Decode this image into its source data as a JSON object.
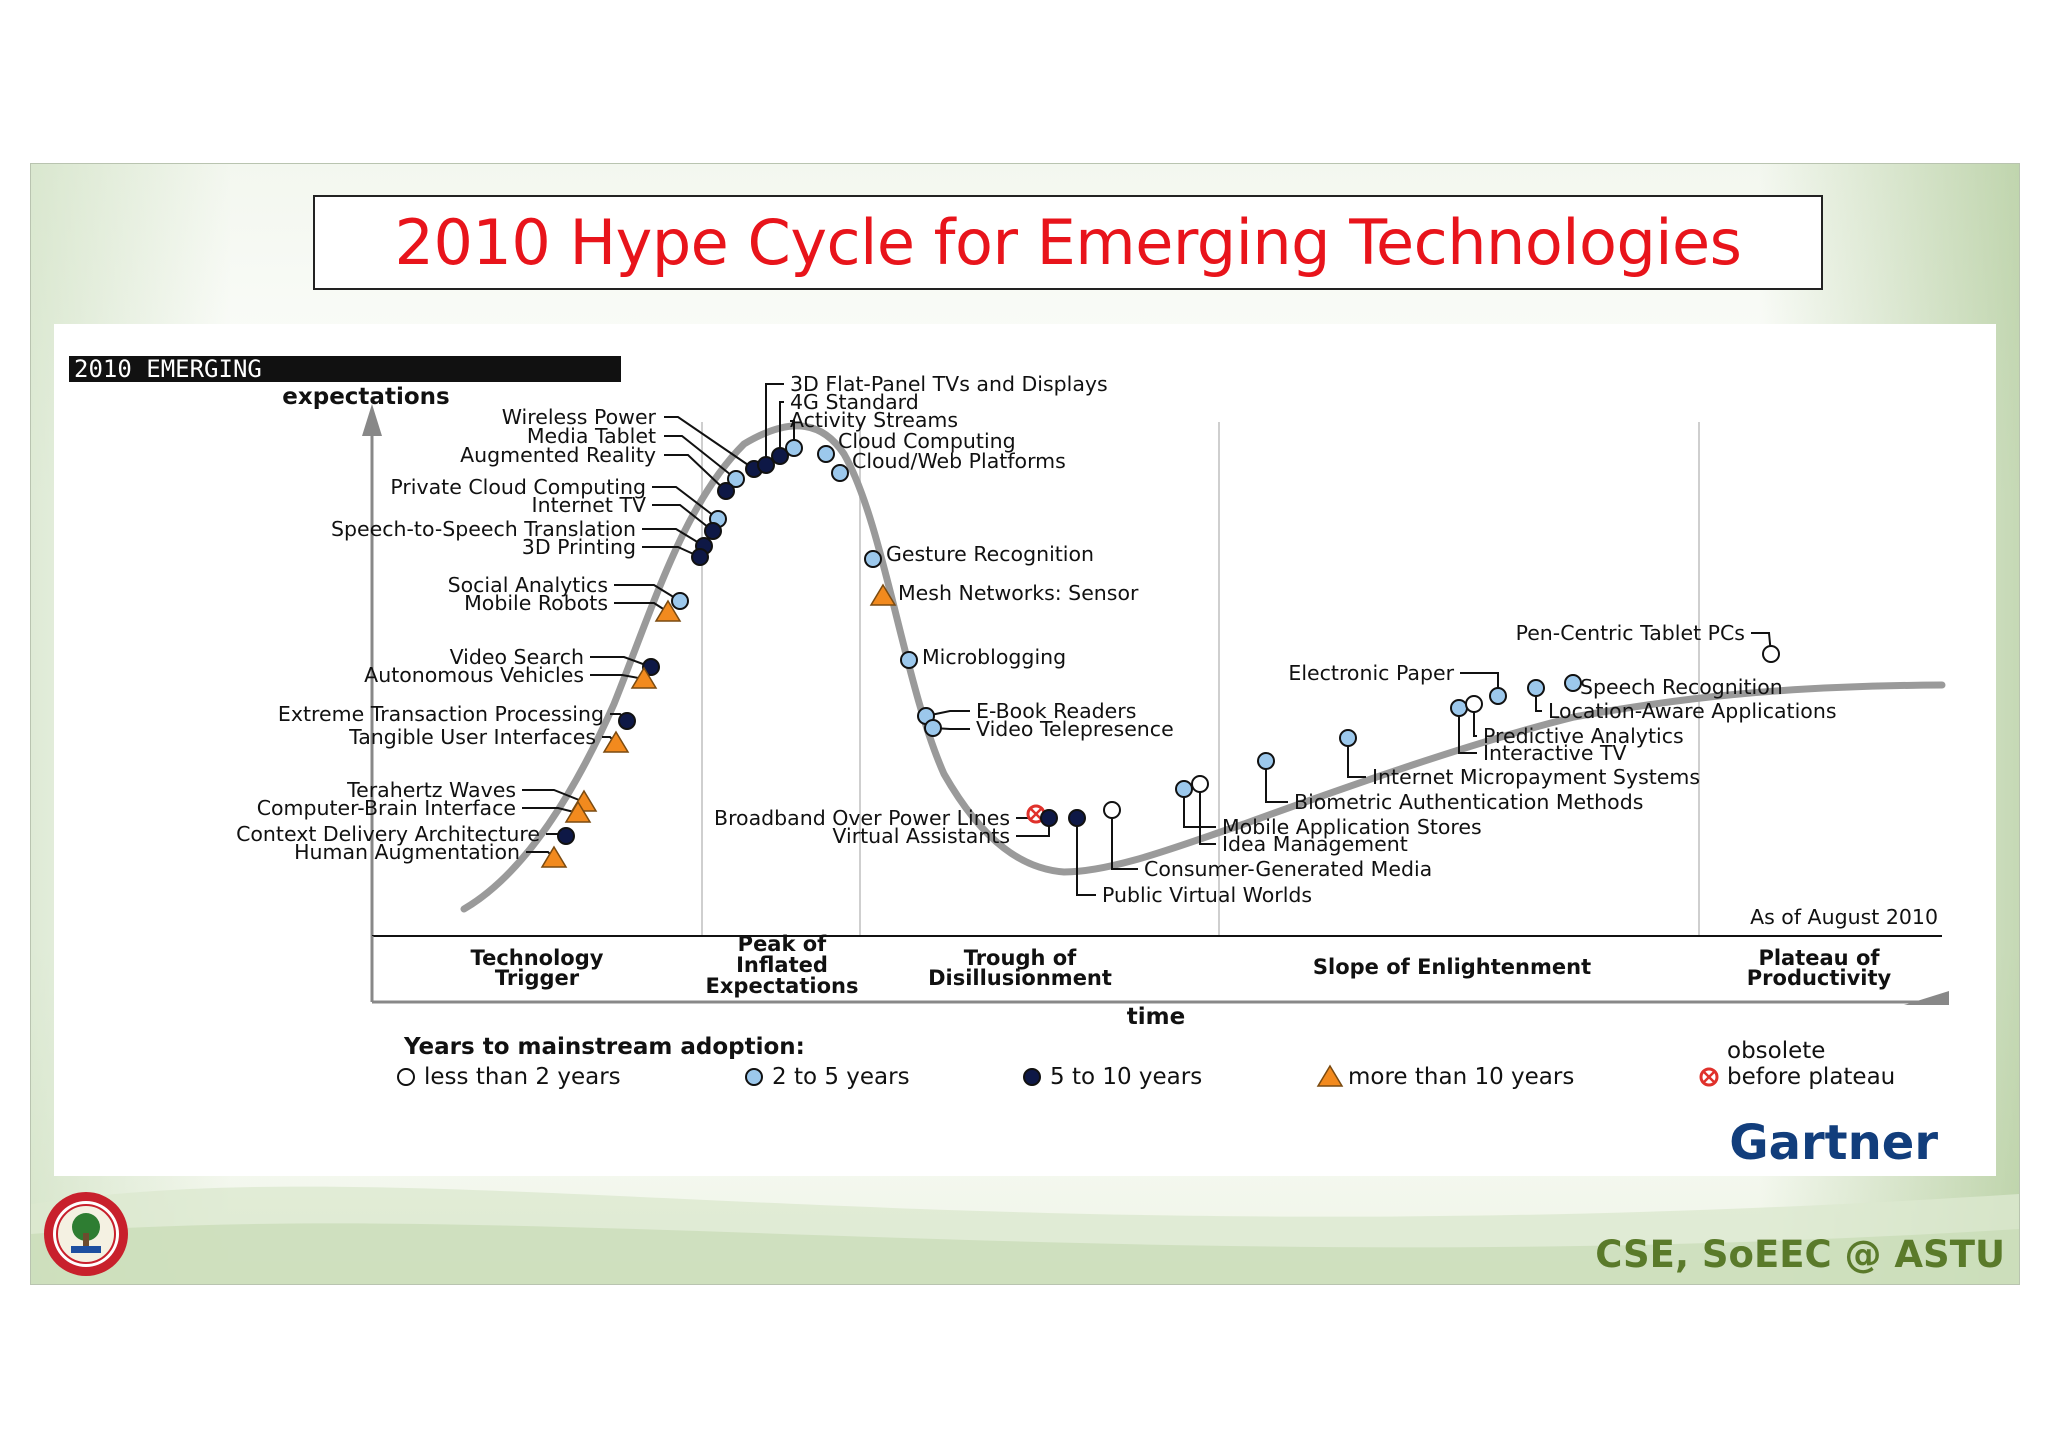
{
  "slide": {
    "title": "2010 Hype Cycle for Emerging Technologies",
    "footer": "CSE, SoEEC @ ASTU",
    "logo": "astu-university-seal"
  },
  "figure": {
    "corner_label": "2010 EMERGING",
    "y_axis_label": "expectations",
    "x_axis_label": "time",
    "as_of": "As of August 2010",
    "brand": "Gartner",
    "phases": [
      "Technology Trigger",
      "Peak of Inflated Expectations",
      "Trough of Disillusionment",
      "Slope of Enlightenment",
      "Plateau of Productivity"
    ],
    "legend_title": "Years to mainstream adoption:",
    "legend": [
      {
        "key": "lt2",
        "label": "less than 2 years",
        "marker": "circle-white"
      },
      {
        "key": "2to5",
        "label": "2 to 5 years",
        "marker": "circle-lightblue"
      },
      {
        "key": "5to10",
        "label": "5 to 10 years",
        "marker": "circle-navy"
      },
      {
        "key": "gt10",
        "label": "more than 10 years",
        "marker": "triangle-orange"
      },
      {
        "key": "obs",
        "label_line1": "obsolete",
        "label_line2": "before plateau",
        "marker": "circle-x-red"
      }
    ],
    "colors": {
      "lt2": "#ffffff",
      "2to5": "#9cc8ec",
      "5to10": "#0e1846",
      "gt10": "#f28a1e",
      "obs": "#e0312b",
      "curve": "#9a9a9a",
      "gartner": "#123e7c"
    },
    "technologies": [
      {
        "name": "Wireless Power",
        "years": "5to10"
      },
      {
        "name": "Media Tablet",
        "years": "2to5"
      },
      {
        "name": "Augmented Reality",
        "years": "5to10"
      },
      {
        "name": "Private Cloud Computing",
        "years": "2to5"
      },
      {
        "name": "Internet TV",
        "years": "5to10"
      },
      {
        "name": "Speech-to-Speech Translation",
        "years": "5to10"
      },
      {
        "name": "3D Printing",
        "years": "5to10"
      },
      {
        "name": "Social Analytics",
        "years": "2to5"
      },
      {
        "name": "Mobile Robots",
        "years": "gt10"
      },
      {
        "name": "Video Search",
        "years": "5to10"
      },
      {
        "name": "Autonomous Vehicles",
        "years": "gt10"
      },
      {
        "name": "Extreme Transaction Processing",
        "years": "5to10"
      },
      {
        "name": "Tangible User Interfaces",
        "years": "gt10"
      },
      {
        "name": "Terahertz Waves",
        "years": "gt10"
      },
      {
        "name": "Computer-Brain Interface",
        "years": "gt10"
      },
      {
        "name": "Context Delivery Architecture",
        "years": "5to10"
      },
      {
        "name": "Human Augmentation",
        "years": "gt10"
      },
      {
        "name": "3D Flat-Panel TVs and Displays",
        "years": "5to10"
      },
      {
        "name": "4G Standard",
        "years": "5to10"
      },
      {
        "name": "Activity Streams",
        "years": "2to5"
      },
      {
        "name": "Cloud Computing",
        "years": "2to5"
      },
      {
        "name": "Cloud/Web Platforms",
        "years": "2to5"
      },
      {
        "name": "Gesture Recognition",
        "years": "2to5"
      },
      {
        "name": "Mesh Networks: Sensor",
        "years": "gt10"
      },
      {
        "name": "Microblogging",
        "years": "2to5"
      },
      {
        "name": "E-Book Readers",
        "years": "2to5"
      },
      {
        "name": "Video Telepresence",
        "years": "2to5"
      },
      {
        "name": "Broadband Over Power Lines",
        "years": "obs"
      },
      {
        "name": "Virtual Assistants",
        "years": "5to10"
      },
      {
        "name": "Public Virtual Worlds",
        "years": "5to10"
      },
      {
        "name": "Consumer-Generated Media",
        "years": "lt2"
      },
      {
        "name": "Mobile Application Stores",
        "years": "2to5"
      },
      {
        "name": "Idea Management",
        "years": "lt2"
      },
      {
        "name": "Biometric Authentication Methods",
        "years": "2to5"
      },
      {
        "name": "Internet Micropayment Systems",
        "years": "2to5"
      },
      {
        "name": "Interactive TV",
        "years": "2to5"
      },
      {
        "name": "Predictive Analytics",
        "years": "lt2"
      },
      {
        "name": "Electronic Paper",
        "years": "2to5"
      },
      {
        "name": "Location-Aware Applications",
        "years": "2to5"
      },
      {
        "name": "Speech Recognition",
        "years": "2to5"
      },
      {
        "name": "Pen-Centric Tablet PCs",
        "years": "lt2"
      }
    ]
  }
}
